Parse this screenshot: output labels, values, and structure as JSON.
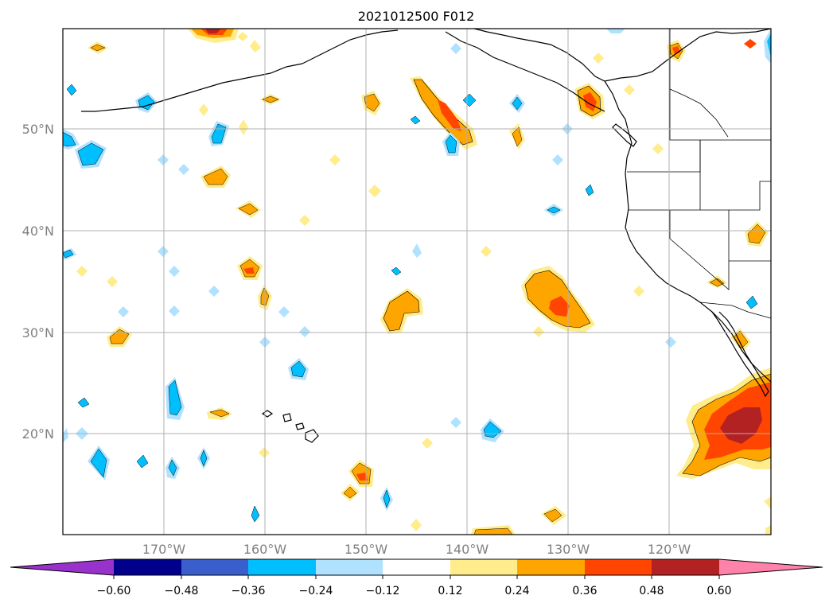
{
  "title": "2021012500 F012",
  "map": {
    "lat_labels": [
      "50°N",
      "40°N",
      "30°N",
      "20°N"
    ],
    "lon_labels": [
      "170°W",
      "160°W",
      "150°W",
      "140°W",
      "130°W",
      "120°W"
    ],
    "grid_color": "#b0b0b0",
    "coastline_color": "#000000"
  },
  "colorbar": {
    "ticks": [
      "−0.60",
      "−0.48",
      "−0.36",
      "−0.24",
      "−0.12",
      "0.12",
      "0.24",
      "0.36",
      "0.48",
      "0.60"
    ],
    "colors": [
      "#9932cc",
      "#00008b",
      "#3a5fcd",
      "#00bfff",
      "#b0e2ff",
      "#ffffff",
      "#ffec8b",
      "#ffa500",
      "#ff4500",
      "#b22222",
      "#ff82ab"
    ]
  }
}
